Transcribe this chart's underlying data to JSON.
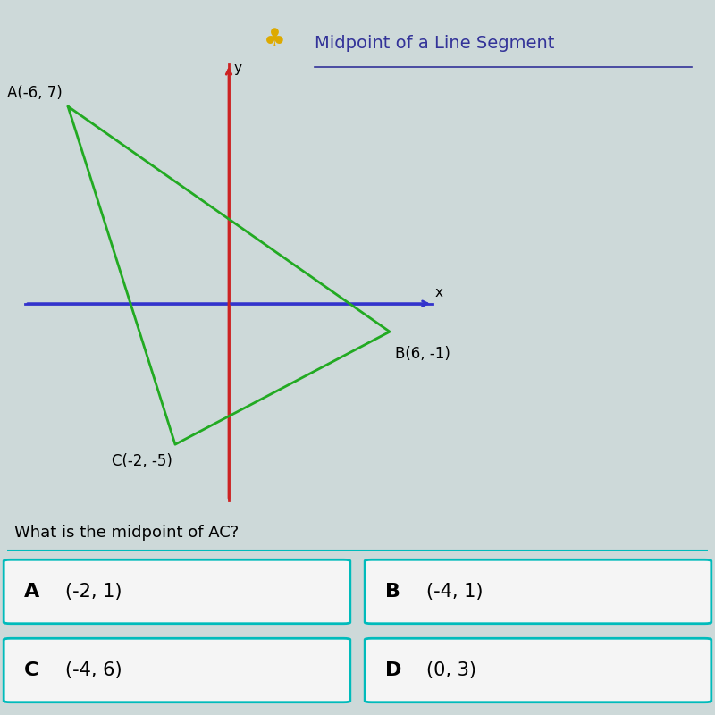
{
  "title": "Midpoint of a Line Segment",
  "points": {
    "A": [
      -6,
      7
    ],
    "B": [
      6,
      -1
    ],
    "C": [
      -2,
      -5
    ]
  },
  "point_labels": {
    "A": "A(-6, 7)",
    "B": "B(6, -1)",
    "C": "C(-2, -5)"
  },
  "triangle_color": "#22aa22",
  "triangle_linewidth": 2.0,
  "xaxis_color": "#3333cc",
  "yaxis_color": "#cc2222",
  "axis_linewidth": 2.0,
  "background_color": "#cdd9d9",
  "graph_xlim": [
    -8,
    8
  ],
  "graph_ylim": [
    -7.5,
    9
  ],
  "question": "What is the midpoint of AC?",
  "choices": [
    {
      "label": "A",
      "text": "(-2, 1)"
    },
    {
      "label": "B",
      "text": "(-4, 1)"
    },
    {
      "label": "C",
      "text": "(-4, 6)"
    },
    {
      "label": "D",
      "text": "(0, 3)"
    }
  ],
  "choice_border_color": "#00bbbb",
  "choice_bg_color": "#f5f5f5",
  "choice_fontsize": 15,
  "question_fontsize": 13,
  "point_label_fontsize": 12,
  "axis_label_fontsize": 11,
  "title_color": "#333399",
  "title_fontsize": 14,
  "icon_color": "#ddaa00"
}
